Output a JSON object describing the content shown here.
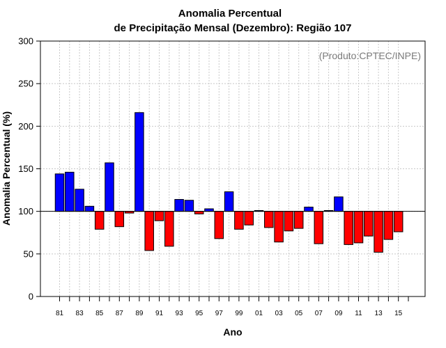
{
  "chart_data": {
    "type": "bar",
    "title_line1": "Anomalia Percentual",
    "title_line2": "de Precipitação Mensal (Dezembro): Região 107",
    "credit": "(Produto:CPTEC/INPE)",
    "xlabel": "Ano",
    "ylabel": "Anomalia Percentual (%)",
    "ylim": [
      0,
      300
    ],
    "yticks": [
      "0",
      "50",
      "100",
      "150",
      "200",
      "250",
      "300"
    ],
    "baseline": 100,
    "grid": true,
    "colors": {
      "above": "#0000ff",
      "below": "#ff0000",
      "grid": "#c8c8c8"
    },
    "tick_labels": [
      "81",
      "83",
      "85",
      "87",
      "89",
      "91",
      "93",
      "95",
      "97",
      "99",
      "01",
      "03",
      "05",
      "07",
      "09",
      "11",
      "13",
      "15"
    ],
    "categories": [
      "1981",
      "1982",
      "1983",
      "1984",
      "1985",
      "1986",
      "1987",
      "1988",
      "1989",
      "1990",
      "1991",
      "1992",
      "1993",
      "1994",
      "1995",
      "1996",
      "1997",
      "1998",
      "1999",
      "2000",
      "2001",
      "2002",
      "2003",
      "2004",
      "2005",
      "2006",
      "2007",
      "2008",
      "2009",
      "2010",
      "2011",
      "2012",
      "2013",
      "2014",
      "2015"
    ],
    "values": [
      144,
      146,
      126,
      106,
      79,
      157,
      82,
      98,
      216,
      54,
      89,
      59,
      114,
      113,
      97,
      103,
      68,
      123,
      79,
      84,
      101,
      81,
      64,
      77,
      80,
      105,
      62,
      101,
      117,
      61,
      63,
      71,
      52,
      67,
      76
    ]
  }
}
